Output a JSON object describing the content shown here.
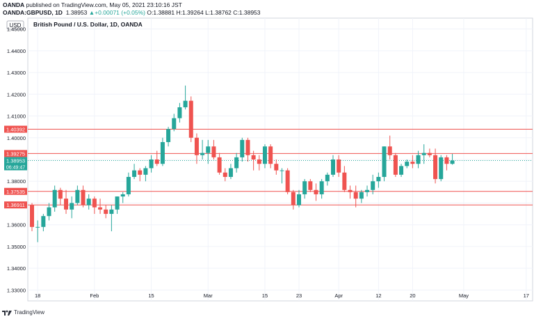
{
  "header": {
    "line1_brand": "OANDA",
    "line1_text": " published on TradingView.com, May 05, 2021 23:10:16 JST",
    "symbol": "OANDA:GBPUSD, 1D",
    "price": "1.38953",
    "change": "+0.00071 (+0.05%)",
    "o_label": "O:",
    "o_val": "1.38881",
    "h_label": "H:",
    "h_val": "1.39264",
    "l_label": "L:",
    "l_val": "1.38762",
    "c_label": "C:",
    "c_val": "1.38953"
  },
  "footer": {
    "brand": "TradingView",
    "icon": "tradingview-logo-icon"
  },
  "colors": {
    "up": "#26a69a",
    "down": "#ef5350",
    "line": "#ef5350",
    "grid": "#f0f3fa",
    "axis": "#131722"
  },
  "chart_data": {
    "type": "candlestick",
    "title": "British Pound / U.S. Dollar, 1D, OANDA",
    "currency_label": "USD",
    "ylim": [
      1.325,
      1.455
    ],
    "y_ticks": [
      "1.45000",
      "1.44000",
      "1.43000",
      "1.42000",
      "1.41000",
      "1.40000",
      "1.39000",
      "1.38000",
      "1.37000",
      "1.36000",
      "1.35000",
      "1.34000",
      "1.33000"
    ],
    "x_ticks": [
      {
        "label": "18",
        "index": 1
      },
      {
        "label": "Feb",
        "index": 11
      },
      {
        "label": "15",
        "index": 21
      },
      {
        "label": "Mar",
        "index": 31
      },
      {
        "label": "15",
        "index": 41
      },
      {
        "label": "23",
        "index": 47
      },
      {
        "label": "Apr",
        "index": 54
      },
      {
        "label": "12",
        "index": 61
      },
      {
        "label": "20",
        "index": 67
      },
      {
        "label": "May",
        "index": 76
      },
      {
        "label": "17",
        "index": 87
      }
    ],
    "horizontal_lines": [
      {
        "label": "1.40392",
        "value": 1.40392
      },
      {
        "label": "1.39275",
        "value": 1.39275
      },
      {
        "label": "1.37535",
        "value": 1.37535
      },
      {
        "label": "1.36911",
        "value": 1.36911
      }
    ],
    "last_price": {
      "label": "1.38953",
      "value": 1.38953,
      "countdown": "06:49:47"
    },
    "candles": [
      {
        "o": 1.369,
        "h": 1.37,
        "l": 1.357,
        "c": 1.359
      },
      {
        "o": 1.359,
        "h": 1.362,
        "l": 1.352,
        "c": 1.359
      },
      {
        "o": 1.359,
        "h": 1.365,
        "l": 1.357,
        "c": 1.364
      },
      {
        "o": 1.364,
        "h": 1.37,
        "l": 1.362,
        "c": 1.368
      },
      {
        "o": 1.368,
        "h": 1.378,
        "l": 1.366,
        "c": 1.376
      },
      {
        "o": 1.376,
        "h": 1.377,
        "l": 1.369,
        "c": 1.372
      },
      {
        "o": 1.372,
        "h": 1.376,
        "l": 1.365,
        "c": 1.367
      },
      {
        "o": 1.367,
        "h": 1.373,
        "l": 1.363,
        "c": 1.37
      },
      {
        "o": 1.37,
        "h": 1.378,
        "l": 1.369,
        "c": 1.376
      },
      {
        "o": 1.376,
        "h": 1.378,
        "l": 1.368,
        "c": 1.369
      },
      {
        "o": 1.369,
        "h": 1.374,
        "l": 1.367,
        "c": 1.372
      },
      {
        "o": 1.372,
        "h": 1.373,
        "l": 1.365,
        "c": 1.368
      },
      {
        "o": 1.368,
        "h": 1.372,
        "l": 1.365,
        "c": 1.367
      },
      {
        "o": 1.367,
        "h": 1.369,
        "l": 1.363,
        "c": 1.365
      },
      {
        "o": 1.365,
        "h": 1.369,
        "l": 1.357,
        "c": 1.367
      },
      {
        "o": 1.367,
        "h": 1.373,
        "l": 1.365,
        "c": 1.373
      },
      {
        "o": 1.373,
        "h": 1.375,
        "l": 1.37,
        "c": 1.374
      },
      {
        "o": 1.374,
        "h": 1.384,
        "l": 1.373,
        "c": 1.382
      },
      {
        "o": 1.382,
        "h": 1.388,
        "l": 1.381,
        "c": 1.385
      },
      {
        "o": 1.385,
        "h": 1.386,
        "l": 1.38,
        "c": 1.383
      },
      {
        "o": 1.383,
        "h": 1.387,
        "l": 1.38,
        "c": 1.386
      },
      {
        "o": 1.386,
        "h": 1.392,
        "l": 1.384,
        "c": 1.39
      },
      {
        "o": 1.39,
        "h": 1.394,
        "l": 1.387,
        "c": 1.388
      },
      {
        "o": 1.388,
        "h": 1.4,
        "l": 1.387,
        "c": 1.398
      },
      {
        "o": 1.398,
        "h": 1.405,
        "l": 1.396,
        "c": 1.404
      },
      {
        "o": 1.404,
        "h": 1.411,
        "l": 1.403,
        "c": 1.409
      },
      {
        "o": 1.409,
        "h": 1.416,
        "l": 1.407,
        "c": 1.414
      },
      {
        "o": 1.414,
        "h": 1.424,
        "l": 1.413,
        "c": 1.417
      },
      {
        "o": 1.417,
        "h": 1.419,
        "l": 1.398,
        "c": 1.4
      },
      {
        "o": 1.4,
        "h": 1.402,
        "l": 1.388,
        "c": 1.392
      },
      {
        "o": 1.392,
        "h": 1.399,
        "l": 1.39,
        "c": 1.393
      },
      {
        "o": 1.393,
        "h": 1.399,
        "l": 1.388,
        "c": 1.396
      },
      {
        "o": 1.396,
        "h": 1.399,
        "l": 1.39,
        "c": 1.391
      },
      {
        "o": 1.391,
        "h": 1.393,
        "l": 1.383,
        "c": 1.384
      },
      {
        "o": 1.384,
        "h": 1.386,
        "l": 1.38,
        "c": 1.382
      },
      {
        "o": 1.382,
        "h": 1.388,
        "l": 1.381,
        "c": 1.386
      },
      {
        "o": 1.386,
        "h": 1.393,
        "l": 1.384,
        "c": 1.391
      },
      {
        "o": 1.391,
        "h": 1.4,
        "l": 1.389,
        "c": 1.399
      },
      {
        "o": 1.399,
        "h": 1.4,
        "l": 1.389,
        "c": 1.392
      },
      {
        "o": 1.392,
        "h": 1.394,
        "l": 1.385,
        "c": 1.39
      },
      {
        "o": 1.39,
        "h": 1.392,
        "l": 1.385,
        "c": 1.388
      },
      {
        "o": 1.388,
        "h": 1.397,
        "l": 1.386,
        "c": 1.396
      },
      {
        "o": 1.396,
        "h": 1.397,
        "l": 1.386,
        "c": 1.388
      },
      {
        "o": 1.388,
        "h": 1.39,
        "l": 1.383,
        "c": 1.385
      },
      {
        "o": 1.385,
        "h": 1.386,
        "l": 1.379,
        "c": 1.385
      },
      {
        "o": 1.385,
        "h": 1.386,
        "l": 1.374,
        "c": 1.375
      },
      {
        "o": 1.375,
        "h": 1.376,
        "l": 1.367,
        "c": 1.369
      },
      {
        "o": 1.369,
        "h": 1.376,
        "l": 1.368,
        "c": 1.374
      },
      {
        "o": 1.374,
        "h": 1.381,
        "l": 1.372,
        "c": 1.38
      },
      {
        "o": 1.38,
        "h": 1.381,
        "l": 1.375,
        "c": 1.376
      },
      {
        "o": 1.376,
        "h": 1.379,
        "l": 1.371,
        "c": 1.374
      },
      {
        "o": 1.374,
        "h": 1.381,
        "l": 1.372,
        "c": 1.38
      },
      {
        "o": 1.38,
        "h": 1.384,
        "l": 1.378,
        "c": 1.383
      },
      {
        "o": 1.383,
        "h": 1.392,
        "l": 1.382,
        "c": 1.39
      },
      {
        "o": 1.39,
        "h": 1.392,
        "l": 1.382,
        "c": 1.384
      },
      {
        "o": 1.384,
        "h": 1.387,
        "l": 1.375,
        "c": 1.376
      },
      {
        "o": 1.376,
        "h": 1.378,
        "l": 1.372,
        "c": 1.375
      },
      {
        "o": 1.375,
        "h": 1.378,
        "l": 1.368,
        "c": 1.372
      },
      {
        "o": 1.372,
        "h": 1.376,
        "l": 1.37,
        "c": 1.375
      },
      {
        "o": 1.375,
        "h": 1.378,
        "l": 1.373,
        "c": 1.376
      },
      {
        "o": 1.376,
        "h": 1.383,
        "l": 1.374,
        "c": 1.38
      },
      {
        "o": 1.38,
        "h": 1.384,
        "l": 1.377,
        "c": 1.382
      },
      {
        "o": 1.382,
        "h": 1.396,
        "l": 1.38,
        "c": 1.396
      },
      {
        "o": 1.396,
        "h": 1.401,
        "l": 1.39,
        "c": 1.392
      },
      {
        "o": 1.392,
        "h": 1.393,
        "l": 1.382,
        "c": 1.383
      },
      {
        "o": 1.383,
        "h": 1.388,
        "l": 1.382,
        "c": 1.387
      },
      {
        "o": 1.387,
        "h": 1.39,
        "l": 1.386,
        "c": 1.389
      },
      {
        "o": 1.389,
        "h": 1.392,
        "l": 1.386,
        "c": 1.388
      },
      {
        "o": 1.388,
        "h": 1.394,
        "l": 1.386,
        "c": 1.392
      },
      {
        "o": 1.392,
        "h": 1.397,
        "l": 1.388,
        "c": 1.393
      },
      {
        "o": 1.393,
        "h": 1.395,
        "l": 1.391,
        "c": 1.392
      },
      {
        "o": 1.392,
        "h": 1.395,
        "l": 1.379,
        "c": 1.381
      },
      {
        "o": 1.381,
        "h": 1.392,
        "l": 1.38,
        "c": 1.391
      },
      {
        "o": 1.391,
        "h": 1.392,
        "l": 1.385,
        "c": 1.388
      },
      {
        "o": 1.388,
        "h": 1.3926,
        "l": 1.3876,
        "c": 1.38953
      }
    ]
  }
}
